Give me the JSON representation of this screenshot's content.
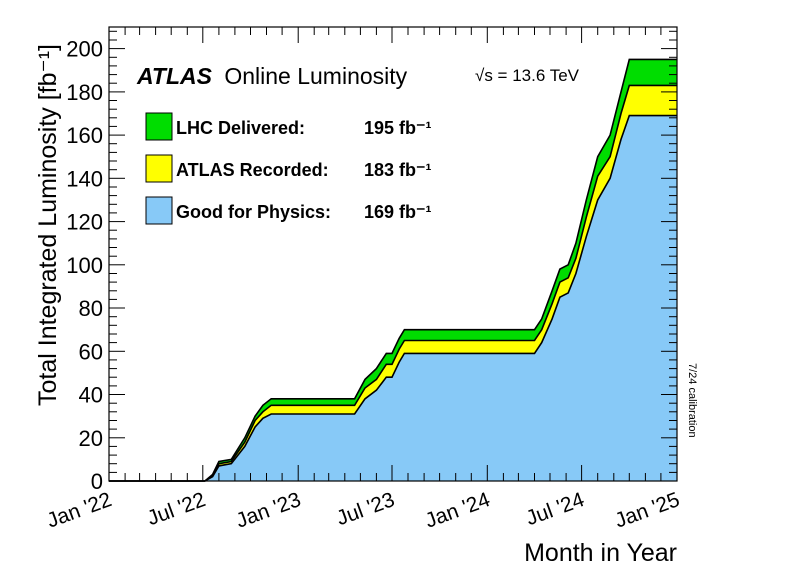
{
  "chart_data": {
    "type": "area",
    "title_brand": "ATLAS",
    "title_rest": "Online Luminosity",
    "energy_label": "√s = 13.6 TeV",
    "calibration_note": "7/24 calibration",
    "ylabel": "Total Integrated Luminosity [fb⁻¹]",
    "xlabel": "Month in Year",
    "ylim": [
      0,
      210
    ],
    "yticks": [
      0,
      20,
      40,
      60,
      80,
      100,
      120,
      140,
      160,
      180,
      200
    ],
    "xlim": [
      "2022-01-01",
      "2025-01-01"
    ],
    "xticks": [
      {
        "date": "2022-01-01",
        "label": "Jan '22"
      },
      {
        "date": "2022-07-01",
        "label": "Jul '22"
      },
      {
        "date": "2023-01-01",
        "label": "Jan '23"
      },
      {
        "date": "2023-07-01",
        "label": "Jul '23"
      },
      {
        "date": "2024-01-01",
        "label": "Jan '24"
      },
      {
        "date": "2024-07-01",
        "label": "Jul '24"
      },
      {
        "date": "2025-01-01",
        "label": "Jan '25"
      }
    ],
    "legend_position": "top-left",
    "series": [
      {
        "name": "LHC Delivered:",
        "total": "195 fb⁻¹",
        "color": "#00dd00",
        "points": [
          [
            "2022-01-01",
            0
          ],
          [
            "2022-07-05",
            0
          ],
          [
            "2022-07-20",
            3
          ],
          [
            "2022-08-01",
            9
          ],
          [
            "2022-08-25",
            10
          ],
          [
            "2022-09-20",
            20
          ],
          [
            "2022-10-10",
            30
          ],
          [
            "2022-10-25",
            35
          ],
          [
            "2022-11-10",
            38
          ],
          [
            "2023-04-20",
            38
          ],
          [
            "2023-05-10",
            47
          ],
          [
            "2023-06-01",
            52
          ],
          [
            "2023-06-20",
            59
          ],
          [
            "2023-07-01",
            59
          ],
          [
            "2023-07-15",
            66
          ],
          [
            "2023-07-25",
            70
          ],
          [
            "2024-04-01",
            70
          ],
          [
            "2024-04-15",
            75
          ],
          [
            "2024-05-05",
            88
          ],
          [
            "2024-05-20",
            98
          ],
          [
            "2024-06-05",
            100
          ],
          [
            "2024-06-20",
            110
          ],
          [
            "2024-07-10",
            130
          ],
          [
            "2024-08-01",
            150
          ],
          [
            "2024-08-25",
            160
          ],
          [
            "2024-09-15",
            180
          ],
          [
            "2024-10-01",
            195
          ],
          [
            "2025-01-01",
            195
          ]
        ]
      },
      {
        "name": "ATLAS Recorded:",
        "total": "183 fb⁻¹",
        "color": "#ffff00",
        "points": [
          [
            "2022-01-01",
            0
          ],
          [
            "2022-07-05",
            0
          ],
          [
            "2022-07-20",
            2
          ],
          [
            "2022-08-01",
            8
          ],
          [
            "2022-08-25",
            9
          ],
          [
            "2022-09-20",
            18
          ],
          [
            "2022-10-10",
            28
          ],
          [
            "2022-10-25",
            32
          ],
          [
            "2022-11-10",
            35
          ],
          [
            "2023-04-20",
            35
          ],
          [
            "2023-05-10",
            43
          ],
          [
            "2023-06-01",
            47
          ],
          [
            "2023-06-20",
            54
          ],
          [
            "2023-07-01",
            54
          ],
          [
            "2023-07-15",
            61
          ],
          [
            "2023-07-25",
            65
          ],
          [
            "2024-04-01",
            65
          ],
          [
            "2024-04-15",
            70
          ],
          [
            "2024-05-05",
            82
          ],
          [
            "2024-05-20",
            92
          ],
          [
            "2024-06-05",
            94
          ],
          [
            "2024-06-20",
            103
          ],
          [
            "2024-07-10",
            122
          ],
          [
            "2024-08-01",
            141
          ],
          [
            "2024-08-25",
            150
          ],
          [
            "2024-09-15",
            170
          ],
          [
            "2024-10-01",
            183
          ],
          [
            "2025-01-01",
            183
          ]
        ]
      },
      {
        "name": "Good for Physics:",
        "total": "169 fb⁻¹",
        "color": "#87c9f7",
        "points": [
          [
            "2022-01-01",
            0
          ],
          [
            "2022-07-05",
            0
          ],
          [
            "2022-07-20",
            2
          ],
          [
            "2022-08-01",
            7
          ],
          [
            "2022-08-25",
            8
          ],
          [
            "2022-09-20",
            16
          ],
          [
            "2022-10-10",
            25
          ],
          [
            "2022-10-25",
            29
          ],
          [
            "2022-11-10",
            31
          ],
          [
            "2023-04-20",
            31
          ],
          [
            "2023-05-10",
            38
          ],
          [
            "2023-06-01",
            42
          ],
          [
            "2023-06-20",
            48
          ],
          [
            "2023-07-01",
            48
          ],
          [
            "2023-07-15",
            55
          ],
          [
            "2023-07-25",
            59
          ],
          [
            "2024-04-01",
            59
          ],
          [
            "2024-04-15",
            64
          ],
          [
            "2024-05-05",
            75
          ],
          [
            "2024-05-20",
            85
          ],
          [
            "2024-06-05",
            87
          ],
          [
            "2024-06-20",
            96
          ],
          [
            "2024-07-10",
            113
          ],
          [
            "2024-08-01",
            130
          ],
          [
            "2024-08-25",
            140
          ],
          [
            "2024-09-15",
            158
          ],
          [
            "2024-10-01",
            169
          ],
          [
            "2025-01-01",
            169
          ]
        ]
      }
    ]
  }
}
